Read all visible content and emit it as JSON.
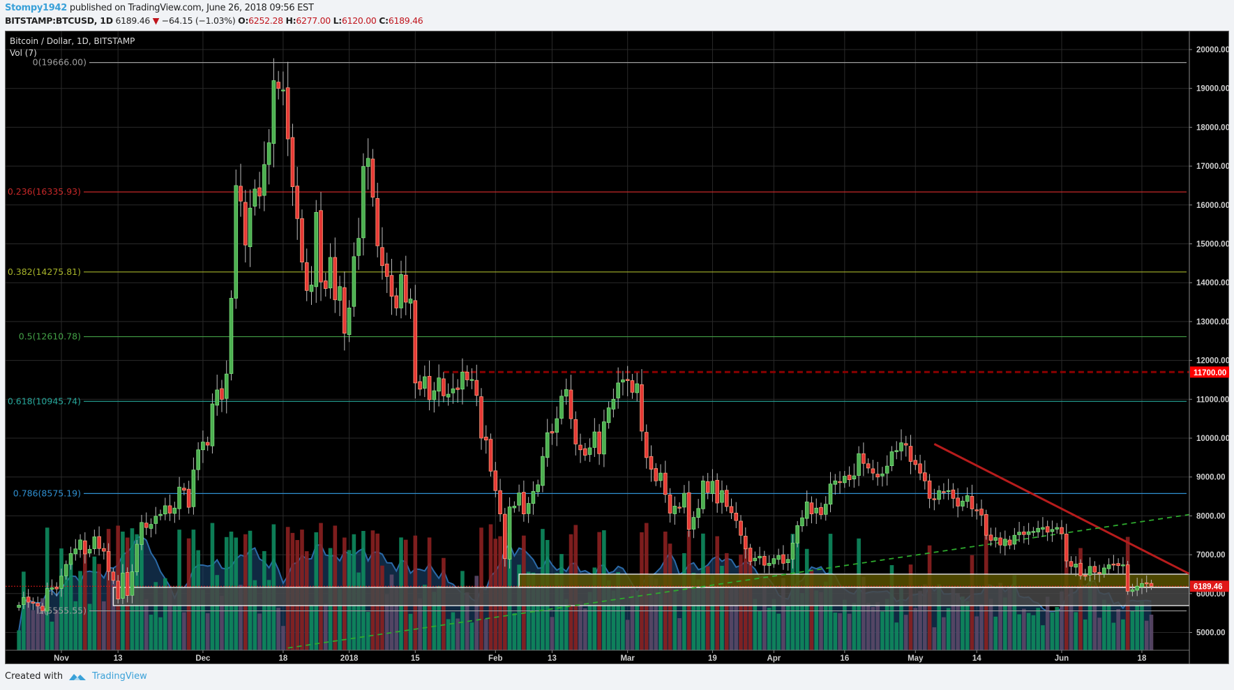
{
  "header": {
    "author": "Stompy1942",
    "published": "published on TradingView.com, June 26, 2018 09:56 EST",
    "symbol": "BITSTAMP:BTCUSD, 1D",
    "last": "6189.46",
    "change": "−64.15 (−1.03%)",
    "change_arrow": "▼",
    "o_label": "O:",
    "o": "6252.28",
    "h_label": "H:",
    "h": "6277.00",
    "l_label": "L:",
    "l": "6120.00",
    "c_label": "C:",
    "c": "6189.46"
  },
  "legend": {
    "title": "Bitcoin / Dollar, 1D, BITSTAMP",
    "volume": "Vol (7)"
  },
  "footer": {
    "created_with": "Created with",
    "brand": "TradingView",
    "brand_icon": "tradingview-cloud-icon"
  },
  "colors": {
    "up": "#4caf50",
    "down": "#e53935",
    "down_border": "#ff9a7a",
    "vol_up": "#0e8a5e",
    "vol_down": "#5b4868",
    "vol_spike": "#8b2020",
    "grid": "#2a2a2a",
    "axis_text": "#cfcfcf",
    "price_label_bg": "#e01818",
    "resistance_label_bg": "#ff0000"
  },
  "chart_data": {
    "type": "candlestick",
    "title": "Bitcoin / Dollar, 1D, BITSTAMP",
    "ylim": [
      4600,
      20400
    ],
    "y_ticks": [
      20000,
      19000,
      18000,
      17000,
      16000,
      15000,
      14000,
      13000,
      12000,
      11000,
      10000,
      9000,
      8000,
      7000,
      6000,
      5000
    ],
    "y_tick_labels": [
      "20000.00",
      "19000.00",
      "18000.00",
      "17000.00",
      "16000.00",
      "15000.00",
      "14000.00",
      "13000.00",
      "12000.00",
      "11000.00",
      "10000.00",
      "9000.00",
      "8000.00",
      "7000.00",
      "6000.00",
      "5000.00"
    ],
    "x_ticks": [
      {
        "label": "Nov",
        "day": 0
      },
      {
        "label": "13",
        "day": 12
      },
      {
        "label": "Dec",
        "day": 30
      },
      {
        "label": "18",
        "day": 47
      },
      {
        "label": "2018",
        "day": 61
      },
      {
        "label": "15",
        "day": 75
      },
      {
        "label": "Feb",
        "day": 92
      },
      {
        "label": "13",
        "day": 104
      },
      {
        "label": "Mar",
        "day": 120
      },
      {
        "label": "19",
        "day": 138
      },
      {
        "label": "Apr",
        "day": 151
      },
      {
        "label": "16",
        "day": 166
      },
      {
        "label": "May",
        "day": 181
      },
      {
        "label": "14",
        "day": 194
      },
      {
        "label": "Jun",
        "day": 212
      },
      {
        "label": "18",
        "day": 229
      }
    ],
    "fib_levels": [
      {
        "ratio": "0",
        "price": 19666.0,
        "label": "0(19666.00)",
        "color": "#9e9e9e"
      },
      {
        "ratio": "0.236",
        "price": 16335.93,
        "label": "0.236(16335.93)",
        "color": "#c62828"
      },
      {
        "ratio": "0.382",
        "price": 14275.81,
        "label": "0.382(14275.81)",
        "color": "#a6b32a"
      },
      {
        "ratio": "0.5",
        "price": 12610.78,
        "label": "0.5(12610.78)",
        "color": "#43a047"
      },
      {
        "ratio": "0.618",
        "price": 10945.74,
        "label": "0.618(10945.74)",
        "color": "#26a69a"
      },
      {
        "ratio": "0.786",
        "price": 8575.19,
        "label": "0.786(8575.19)",
        "color": "#2f8fd0"
      },
      {
        "ratio": "1",
        "price": 5555.55,
        "label": "1(5555.55)",
        "color": "#9e9e9e"
      }
    ],
    "horizontal_lines": [
      {
        "name": "resistance",
        "price": 11700,
        "label": "11700.00",
        "style": "dashed",
        "color": "#8b0000"
      },
      {
        "name": "last-price",
        "price": 6189.46,
        "label": "6189.46",
        "style": "dotted",
        "color": "#e01818"
      }
    ],
    "zones": [
      {
        "name": "yellow-support-zone",
        "from_day": 97,
        "to_day": 260,
        "top": 6500,
        "bottom": 6160,
        "color": "#5a5300"
      },
      {
        "name": "grey-support-zone",
        "from_day": 11,
        "to_day": 260,
        "top": 6160,
        "bottom": 5690,
        "color": "#484848"
      }
    ],
    "trendlines": [
      {
        "name": "descending-resistance",
        "from": {
          "day": 185,
          "price": 9850
        },
        "to": {
          "day": 240,
          "price": 6450
        },
        "color": "#b71c1c",
        "style": "solid"
      },
      {
        "name": "ascending-support",
        "from": {
          "day": 48,
          "price": 4600
        },
        "to": {
          "day": 240,
          "price": 8050
        },
        "color": "#2eaa2e",
        "style": "dashed"
      }
    ],
    "start_day": -9,
    "closes": [
      5700,
      5900,
      5780,
      5750,
      5680,
      5560,
      6130,
      6150,
      6120,
      6450,
      6750,
      7030,
      7150,
      7380,
      7020,
      7140,
      7460,
      7160,
      7090,
      6570,
      6340,
      5860,
      6530,
      5950,
      6560,
      7270,
      7830,
      7700,
      7780,
      7990,
      8040,
      8260,
      8070,
      8200,
      8740,
      8660,
      8220,
      9180,
      9700,
      9900,
      9820,
      10880,
      11240,
      11000,
      11650,
      13600,
      16500,
      16100,
      14970,
      15920,
      16410,
      16230,
      17040,
      17600,
      19200,
      19000,
      18960,
      17700,
      16470,
      15650,
      14530,
      13800,
      13940,
      15810,
      14020,
      13850,
      14650,
      13560,
      13900,
      12700,
      13350,
      14670,
      15140,
      16990,
      17200,
      16200,
      14950,
      14440,
      14160,
      13650,
      13350,
      14210,
      13500,
      13580,
      11420,
      11260,
      11580,
      10990,
      11220,
      11550,
      11090,
      11130,
      11270,
      11250,
      11700,
      11500,
      11510,
      11100,
      10000,
      9950,
      9150,
      8650,
      8050,
      6900,
      8230,
      8250,
      8590,
      8050,
      8320,
      8630,
      8800,
      9530,
      10140,
      10130,
      10500,
      11080,
      11250,
      10500,
      9850,
      9700,
      9560,
      9750,
      10160,
      9600,
      10420,
      10780,
      11000,
      11420,
      11500,
      11480,
      11180,
      11400,
      10180,
      9500,
      9200,
      8900,
      9100,
      8550,
      8070,
      8250,
      8200,
      8580,
      7650,
      7960,
      8190,
      8900,
      8600,
      8890,
      8330,
      8650,
      8240,
      8080,
      7880,
      7500,
      7150,
      6830,
      6910,
      6960,
      6730,
      6780,
      6900,
      6980,
      6780,
      6880,
      7300,
      7750,
      7950,
      8360,
      8050,
      8200,
      8030,
      8300,
      8820,
      8900,
      8880,
      9020,
      8930,
      9030,
      9600,
      9350,
      9230,
      9100,
      9000,
      9080,
      9280,
      9650,
      9680,
      9880,
      9820,
      9400,
      9320,
      9100,
      8900,
      8450,
      8440,
      8650,
      8600,
      8650,
      8450,
      8250,
      8380,
      8520,
      8180,
      8150,
      8020,
      7500,
      7370,
      7440,
      7250,
      7400,
      7250,
      7500,
      7580,
      7520,
      7590,
      7600,
      7680,
      7700,
      7580,
      7650,
      7700,
      7540,
      6840,
      6700,
      6760,
      6460,
      6470,
      6700,
      6550,
      6520,
      6660,
      6740,
      6760,
      6720,
      6740,
      6060,
      6100,
      6190,
      6260,
      6250,
      6189
    ]
  },
  "last_price_label": "6189.46",
  "resistance_label": "11700.00"
}
